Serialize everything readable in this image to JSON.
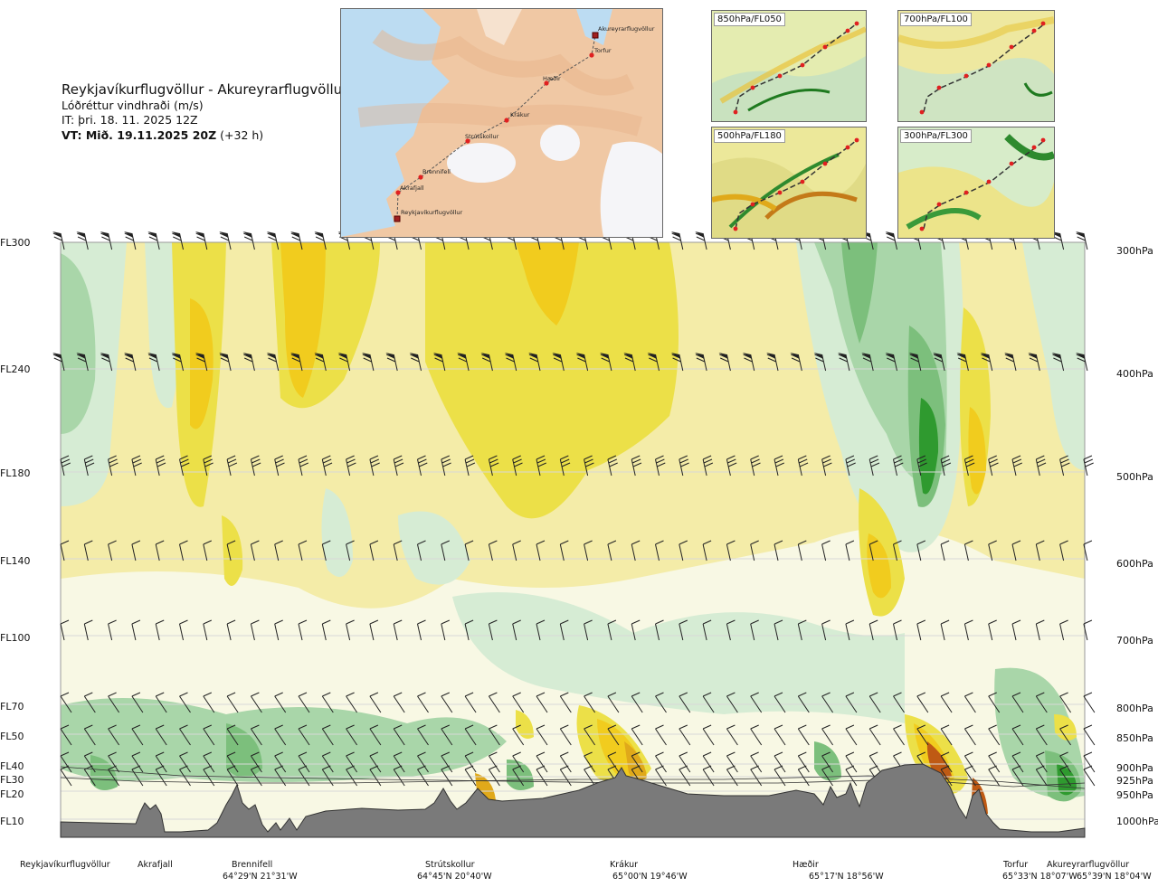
{
  "title": {
    "route": "Reykjavíkurflugvöllur - Akureyrarflugvöllur",
    "variable": "Lóðréttur vindhraði (m/s)",
    "issue_time": "IT: þri. 18. 11. 2025 12Z",
    "valid_time_bold": "VT: Mið. 19.11.2025 20Z",
    "valid_offset": "(+32 h)"
  },
  "map_inset": {
    "points": [
      "Akureyrarflugvöllur",
      "Torfur",
      "Hæðir",
      "Krákur",
      "Strútskollur",
      "Brennifell",
      "Akrafjall",
      "Reykjavíkurflugvöllur"
    ]
  },
  "level_insets": [
    {
      "label": "850hPa/FL050"
    },
    {
      "label": "700hPa/FL100"
    },
    {
      "label": "500hPa/FL180"
    },
    {
      "label": "300hPa/FL300"
    }
  ],
  "chart_data": {
    "type": "heatmap",
    "left_axis_levels": [
      "FL300",
      "FL240",
      "FL180",
      "FL140",
      "FL100",
      "FL70",
      "FL50",
      "FL40",
      "FL30",
      "FL20",
      "FL10"
    ],
    "right_axis_levels": [
      "300hPa",
      "400hPa",
      "500hPa",
      "600hPa",
      "700hPa",
      "800hPa",
      "850hPa",
      "900hPa",
      "925hPa",
      "950hPa",
      "1000hPa"
    ],
    "grid": true,
    "colors": {
      "strong_down": "#2f9a2f",
      "moderate_down": "#7cbf7c",
      "weak_down": "#a9d6a9",
      "slight_down": "#d6ecd4",
      "neutral_light": "#f8f8e4",
      "neutral": "#f4eca8",
      "slight_up": "#ece048",
      "weak_up": "#f1cc1e",
      "moderate_up": "#e0a91a",
      "strong_up": "#bf5a14",
      "terrain": "#7a7a7a"
    }
  },
  "locations": [
    {
      "name": "Reykjavíkurflugvöllur",
      "coord": ""
    },
    {
      "name": "Akrafjall",
      "coord": ""
    },
    {
      "name": "Brennifell",
      "coord": "64°29'N 21°31'W"
    },
    {
      "name": "Strútskollur",
      "coord": "64°45'N 20°40'W"
    },
    {
      "name": "Krákur",
      "coord": "65°00'N 19°46'W"
    },
    {
      "name": "Hæðir",
      "coord": "65°17'N 18°56'W"
    },
    {
      "name": "Torfur",
      "coord": "65°33'N 18°07'W"
    },
    {
      "name": "Akureyrarflugvöllur",
      "coord": "65°39'N 18°04'W"
    }
  ]
}
